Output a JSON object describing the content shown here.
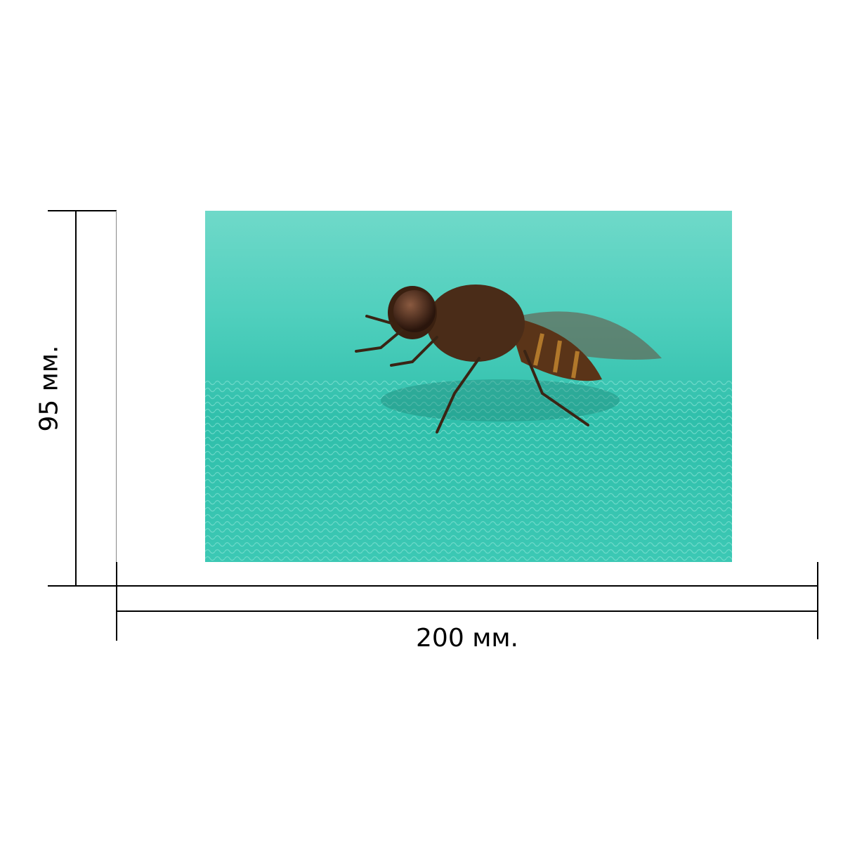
{
  "dimensions": {
    "width_label": "200 мм.",
    "height_label": "95 мм."
  },
  "photo": {
    "subject": "fly-on-teal-mesh",
    "background_color": "#3cc8b4"
  }
}
